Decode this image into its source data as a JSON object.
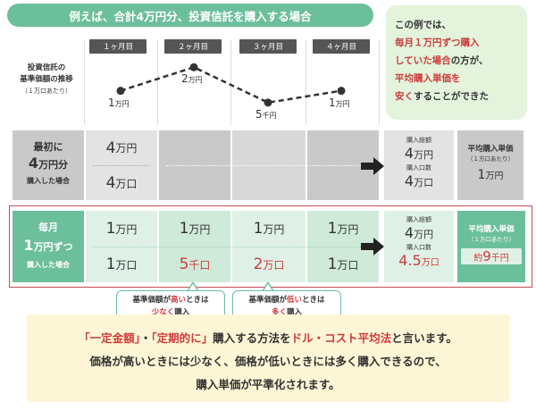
{
  "title": "例えば、合計4万円分、投資信託を購入する場合",
  "side_note": {
    "line1": "この例では、",
    "line2": "毎月１万円ずつ購入",
    "line3": "していた場合",
    "line3b": "の方が、",
    "line4": "平均購入単価を",
    "line5a": "安く",
    "line5b": "することができた"
  },
  "months": [
    "１ヶ月目",
    "２ヶ月目",
    "３ヶ月目",
    "４ヶ月目"
  ],
  "price_label": {
    "line1": "投資信託の",
    "line2": "基準価額の推移",
    "line3": "（１万口あたり）"
  },
  "chart_data": {
    "type": "line",
    "categories": [
      "１ヶ月目",
      "２ヶ月目",
      "３ヶ月目",
      "４ヶ月目"
    ],
    "values": [
      10000,
      20000,
      5000,
      10000
    ],
    "point_labels": [
      [
        "1",
        "万円"
      ],
      [
        "2",
        "万円"
      ],
      [
        "5",
        "千円"
      ],
      [
        "1",
        "万円"
      ]
    ],
    "ylim": [
      0,
      22000
    ]
  },
  "lump": {
    "label1": "最初に",
    "label2a": "4",
    "label2b": "万円分",
    "label3": "購入した場合",
    "amount_num": "4",
    "amount_unit": "万円",
    "units_num": "4",
    "units_unit": "万口",
    "total_amount_label": "購入総額",
    "total_amount_num": "4",
    "total_amount_unit": "万円",
    "total_units_label": "購入口数",
    "total_units_num": "4",
    "total_units_unit": "万口",
    "avg_label": "平均購入単価",
    "avg_sub": "（１万口あたり）",
    "avg_num": "1",
    "avg_unit": "万円"
  },
  "monthly": {
    "label1": "毎月",
    "label2a": "1",
    "label2b": "万円ずつ",
    "label3": "購入した場合",
    "amounts": [
      [
        "1",
        "万円"
      ],
      [
        "1",
        "万円"
      ],
      [
        "1",
        "万円"
      ],
      [
        "1",
        "万円"
      ]
    ],
    "units": [
      [
        "1",
        "万口"
      ],
      [
        "5",
        "千口"
      ],
      [
        "2",
        "万口"
      ],
      [
        "1",
        "万口"
      ]
    ],
    "total_amount_label": "購入総額",
    "total_amount_num": "4",
    "total_amount_unit": "万円",
    "total_units_label": "購入口数",
    "total_units_num": "4.5",
    "total_units_unit": "万口",
    "avg_label": "平均購入単価",
    "avg_sub": "（１万口あたり）",
    "avg_pre": "約",
    "avg_num": "9",
    "avg_unit": "千円"
  },
  "callouts": {
    "high": {
      "a": "基準価額が",
      "b": "高い",
      "c": "ときは",
      "d": "少なく",
      "e": "購入"
    },
    "low": {
      "a": "基準価額が",
      "b": "低い",
      "c": "ときは",
      "d": "多く",
      "e": "購入"
    }
  },
  "bottom": {
    "q1": "「一定金額」",
    "dot": "・",
    "q2": "「定期的に」",
    "mid": "購入する方法を",
    "dca": "ドル・コスト平均法",
    "end": "と言います。",
    "line2": "価格が高いときには少なく、価格が低いときには多く購入できるので、",
    "line3": "購入単価が平準化されます。"
  },
  "colors": {
    "green": "#6cbf9b",
    "red": "#cf3b3b",
    "gray": "#c9c9c9",
    "light_green": "#dff1e6"
  }
}
